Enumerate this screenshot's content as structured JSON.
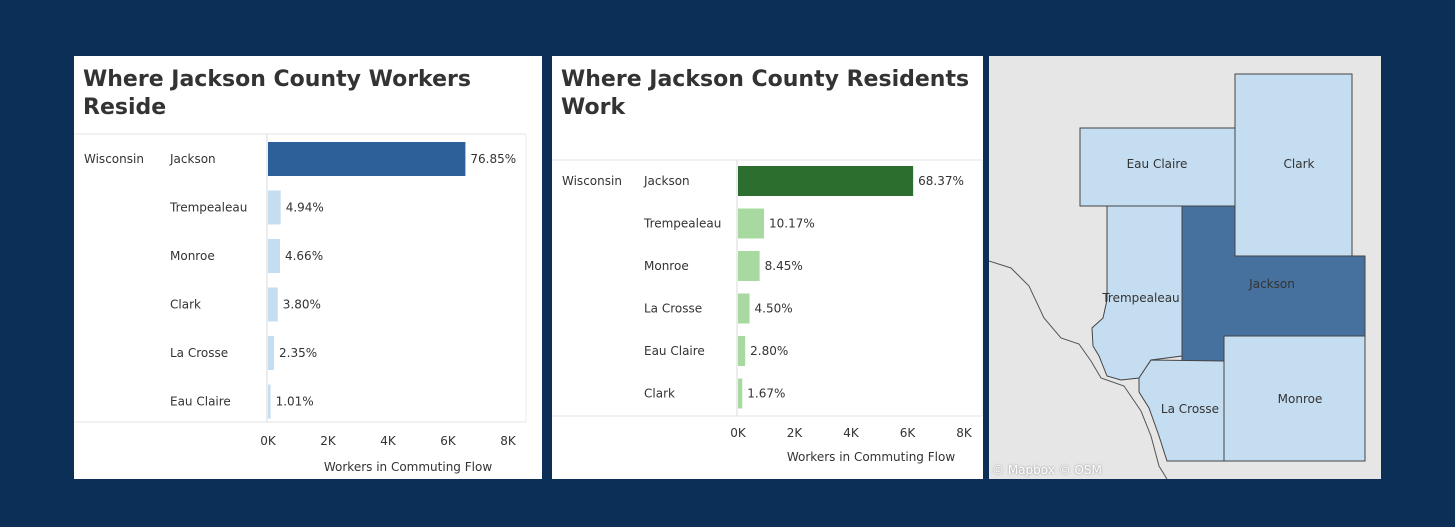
{
  "chart_data": [
    {
      "type": "bar",
      "orientation": "horizontal",
      "title": "Where Jackson County Workers Reside",
      "row_group": "Wisconsin",
      "categories": [
        "Jackson",
        "Trempealeau",
        "Monroe",
        "Clark",
        "La Crosse",
        "Eau Claire"
      ],
      "values": [
        6580,
        423,
        399,
        325,
        201,
        86
      ],
      "data_labels": [
        "76.85%",
        "4.94%",
        "4.66%",
        "3.80%",
        "2.35%",
        "1.01%"
      ],
      "xlabel": "Workers in Commuting Flow",
      "ylabel": "",
      "xlim": [
        0,
        8000
      ],
      "x_ticks": [
        0,
        2000,
        4000,
        6000,
        8000
      ],
      "x_tick_labels": [
        "0K",
        "2K",
        "4K",
        "6K",
        "8K"
      ],
      "colors": {
        "top": "#2d5f98",
        "rest": "#c5ddf1"
      },
      "grid": false
    },
    {
      "type": "bar",
      "orientation": "horizontal",
      "title": "Where Jackson County Residents Work",
      "row_group": "Wisconsin",
      "categories": [
        "Jackson",
        "Trempealeau",
        "Monroe",
        "La Crosse",
        "Eau Claire",
        "Clark"
      ],
      "values": [
        6200,
        922,
        766,
        408,
        254,
        151
      ],
      "data_labels": [
        "68.37%",
        "10.17%",
        "8.45%",
        "4.50%",
        "2.80%",
        "1.67%"
      ],
      "xlabel": "Workers in Commuting Flow",
      "ylabel": "",
      "xlim": [
        0,
        8000
      ],
      "x_ticks": [
        0,
        2000,
        4000,
        6000,
        8000
      ],
      "x_tick_labels": [
        "0K",
        "2K",
        "4K",
        "6K",
        "8K"
      ],
      "colors": {
        "top": "#2b6e2e",
        "rest": "#a8d9a0"
      },
      "grid": false
    }
  ],
  "map": {
    "counties": {
      "eau_claire": "Eau Claire",
      "clark": "Clark",
      "trempealeau": "Trempealeau",
      "jackson": "Jackson",
      "la_crosse": "La Crosse",
      "monroe": "Monroe"
    },
    "colors": {
      "highlight": "#46719f",
      "other": "#c5ddf1",
      "land": "#e6e6e6"
    },
    "attribution": "© Mapbox © OSM"
  }
}
